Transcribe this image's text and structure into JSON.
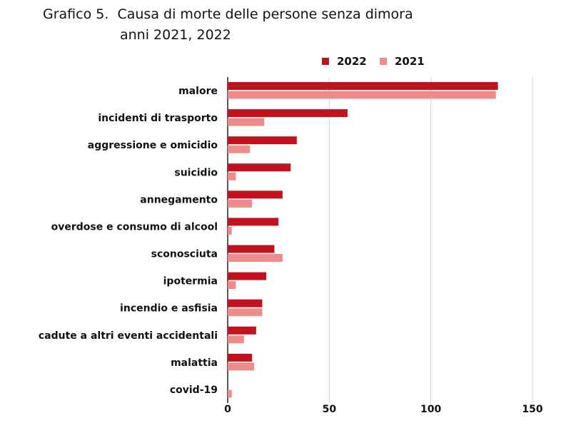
{
  "chart_data": {
    "type": "bar",
    "orientation": "horizontal",
    "title_prefix": "Grafico 5.",
    "title": "Causa di morte delle persone senza dimora",
    "subtitle": "anni 2021, 2022",
    "categories": [
      "malore",
      "incidenti di trasporto",
      "aggressione e omicidio",
      "suicidio",
      "annegamento",
      "overdose e consumo di alcool",
      "sconosciuta",
      "ipotermia",
      "incendio e asfisia",
      "cadute a altri eventi accidentali",
      "malattia",
      "covid-19"
    ],
    "series": [
      {
        "name": "2022",
        "color": "#c0121f",
        "values": [
          133,
          59,
          34,
          31,
          27,
          25,
          23,
          19,
          17,
          14,
          12,
          0
        ]
      },
      {
        "name": "2021",
        "color": "#ee8c8c",
        "values": [
          132,
          18,
          11,
          4,
          12,
          2,
          27,
          4,
          17,
          8,
          13,
          2
        ]
      }
    ],
    "xlim": [
      0,
      150
    ],
    "xticks": [
      0,
      50,
      100,
      150
    ],
    "grid": "vertical",
    "legend_position": "top-right"
  }
}
